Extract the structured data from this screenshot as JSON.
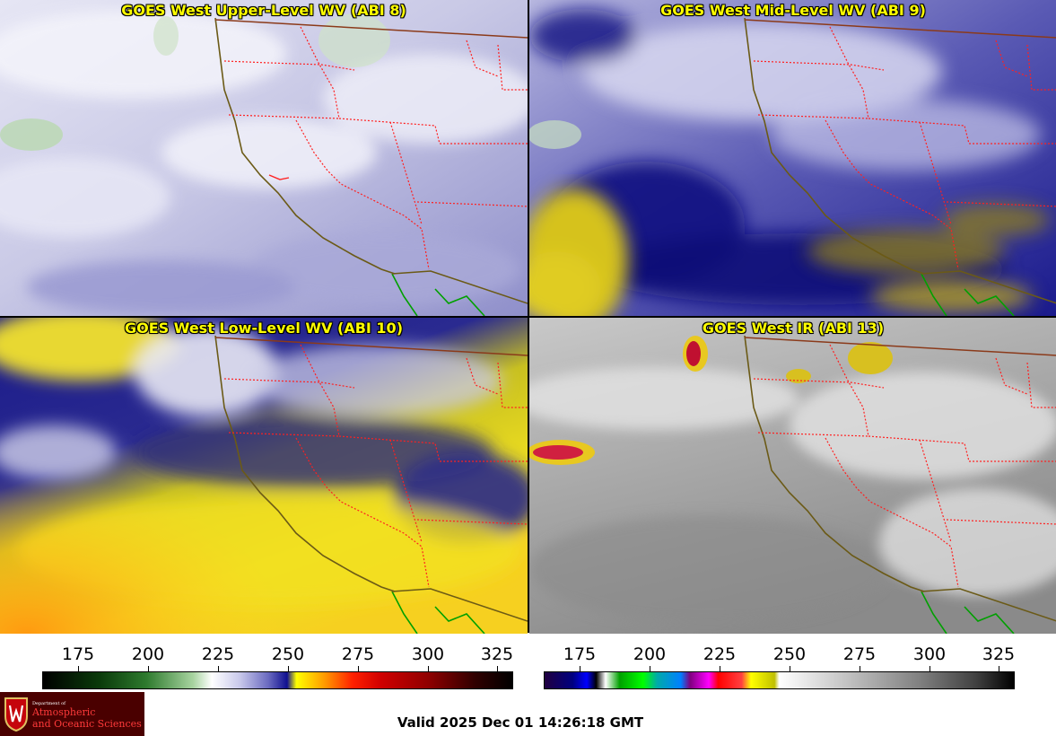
{
  "panels": [
    {
      "title": "GOES West Upper-Level WV (ABI 8)",
      "palette": "upper"
    },
    {
      "title": "GOES West Mid-Level WV (ABI 9)",
      "palette": "mid"
    },
    {
      "title": "GOES West Low-Level WV (ABI 10)",
      "palette": "low"
    },
    {
      "title": "GOES West IR (ABI 13)",
      "palette": "ir"
    }
  ],
  "colorbars": {
    "wv": {
      "ticks": [
        "175",
        "200",
        "225",
        "250",
        "275",
        "300",
        "325"
      ]
    },
    "ir": {
      "ticks": [
        "175",
        "200",
        "225",
        "250",
        "275",
        "300",
        "325"
      ]
    }
  },
  "logo": {
    "dept": "Department of",
    "line1": "Atmospheric",
    "line2": "and Oceanic Sciences"
  },
  "footer": {
    "valid": "Valid 2025 Dec 01 14:26:18 GMT"
  },
  "colors": {
    "state_border": "#ff2020",
    "coast": "#6b5a16",
    "mexico_coast": "#00a000",
    "title": "#ffff00"
  }
}
